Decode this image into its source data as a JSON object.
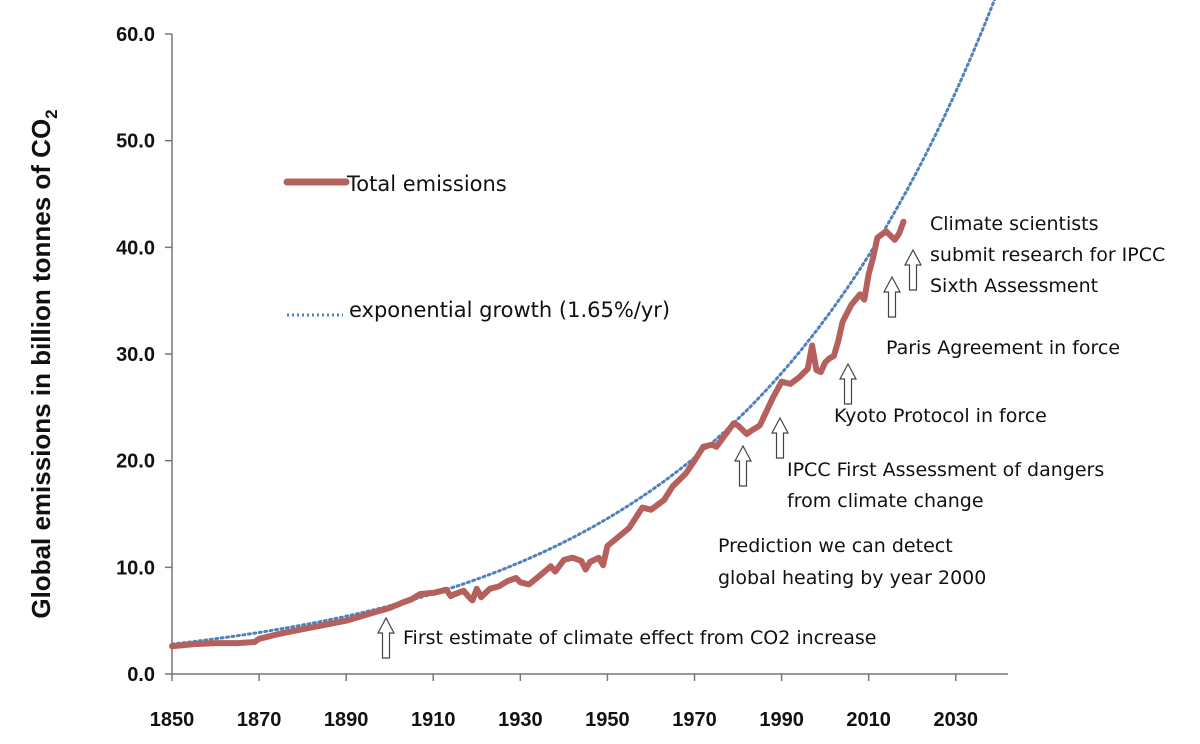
{
  "chart_data": {
    "type": "line",
    "title": "",
    "xlabel": "",
    "ylabel": "Global emissions in billion tonnes of CO",
    "ylabel_subscript": "2",
    "xlim": [
      1850,
      2042
    ],
    "ylim": [
      0,
      60
    ],
    "x_ticks": [
      "1850",
      "1870",
      "1890",
      "1910",
      "1930",
      "1950",
      "1970",
      "1990",
      "2010",
      "2030"
    ],
    "y_ticks": [
      "0.0",
      "10.0",
      "20.0",
      "30.0",
      "40.0",
      "50.0",
      "60.0"
    ],
    "grid": false,
    "legend_position": "upper-left, inside plot",
    "series": [
      {
        "name": "Total emissions",
        "style": "solid",
        "color": "#b5605c",
        "x": [
          1850,
          1855,
          1860,
          1865,
          1869,
          1870,
          1875,
          1880,
          1885,
          1890,
          1895,
          1900,
          1903,
          1905,
          1907,
          1910,
          1913,
          1914,
          1915,
          1917,
          1918,
          1919,
          1920,
          1921,
          1923,
          1925,
          1927,
          1929,
          1930,
          1932,
          1935,
          1937,
          1938,
          1940,
          1942,
          1944,
          1945,
          1946,
          1948,
          1949,
          1950,
          1955,
          1958,
          1960,
          1963,
          1965,
          1968,
          1970,
          1972,
          1974,
          1975,
          1977,
          1979,
          1980,
          1982,
          1983,
          1985,
          1988,
          1990,
          1992,
          1994,
          1996,
          1997,
          1998,
          1999,
          2000,
          2001,
          2002,
          2003,
          2004,
          2006,
          2008,
          2009,
          2010,
          2011,
          2012,
          2013,
          2014,
          2015,
          2016,
          2017,
          2018
        ],
        "values": [
          2.6,
          2.8,
          2.9,
          2.9,
          3.0,
          3.3,
          3.8,
          4.2,
          4.6,
          5.0,
          5.6,
          6.2,
          6.7,
          7.0,
          7.5,
          7.6,
          7.9,
          7.3,
          7.5,
          7.8,
          7.3,
          6.9,
          8.0,
          7.2,
          8.0,
          8.2,
          8.7,
          9.0,
          8.6,
          8.4,
          9.4,
          10.1,
          9.6,
          10.7,
          10.9,
          10.6,
          9.8,
          10.5,
          10.9,
          10.2,
          12.0,
          13.7,
          15.6,
          15.4,
          16.3,
          17.6,
          18.8,
          20.0,
          21.3,
          21.5,
          21.3,
          22.4,
          23.5,
          23.3,
          22.5,
          22.8,
          23.3,
          25.9,
          27.4,
          27.2,
          27.8,
          28.6,
          30.8,
          28.5,
          28.3,
          29.2,
          29.6,
          29.8,
          31.2,
          33.0,
          34.6,
          35.6,
          35.1,
          37.5,
          39.0,
          40.9,
          41.2,
          41.5,
          41.1,
          40.7,
          41.3,
          42.4
        ]
      },
      {
        "name": "exponential growth (1.65%/yr)",
        "style": "dotted",
        "color": "#4f81bd",
        "function": "y = 2.8 * exp(0.0165 * (x - 1850))",
        "x_range": [
          1850,
          2039
        ]
      }
    ],
    "annotations": [
      {
        "year": 1897,
        "value": 5.2,
        "lines": [
          "First estimate of climate effect from CO2 increase"
        ]
      },
      {
        "year": 1979,
        "value": 20.4,
        "lines": [
          "Prediction we can detect",
          "global heating by year 2000"
        ]
      },
      {
        "year": 1988,
        "value": 24.0,
        "lines": [
          "IPCC First Assessment of dangers",
          "from climate change"
        ]
      },
      {
        "year": 2005,
        "value": 30.0,
        "lines": [
          "Kyoto Protocol in force"
        ]
      },
      {
        "year": 2016,
        "value": 38.0,
        "lines": [
          "Paris Agreement in force"
        ]
      },
      {
        "year": 2021,
        "value": 40.5,
        "lines": [
          "Climate scientists",
          "submit research for IPCC",
          "Sixth Assessment"
        ]
      }
    ]
  }
}
